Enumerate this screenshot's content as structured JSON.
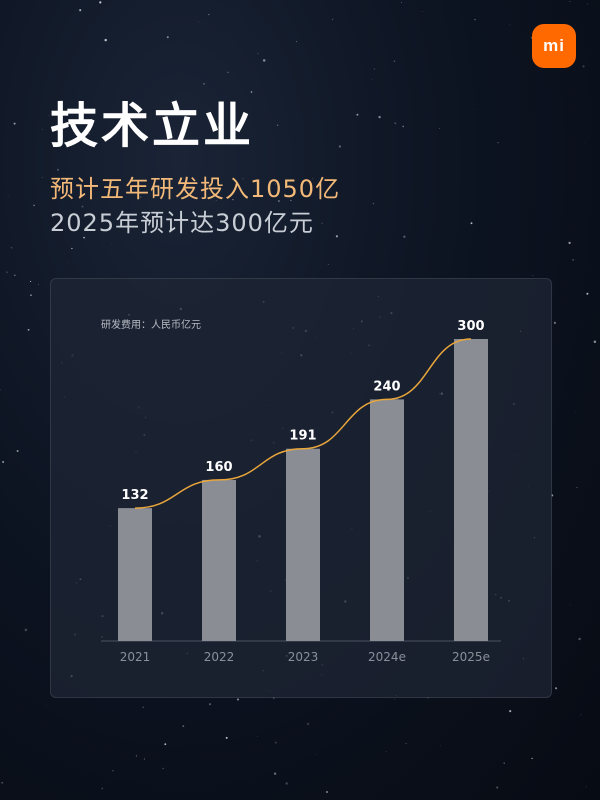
{
  "logo": {
    "text": "mi"
  },
  "header": {
    "title": "技术立业",
    "subtitle_highlight": "预计五年研发投入1050亿",
    "subtitle": "2025年预计达300亿元"
  },
  "colors": {
    "accent": "#f3b978",
    "bar": "#8a8e94",
    "line": "#e9a63c",
    "logo": "#ff6900"
  },
  "chart_data": {
    "type": "bar",
    "note": "研发费用：人民币亿元",
    "categories": [
      "2021",
      "2022",
      "2023",
      "2024e",
      "2025e"
    ],
    "values": [
      132,
      160,
      191,
      240,
      300
    ],
    "ylim": [
      0,
      300
    ],
    "trend_line": true,
    "grid": false,
    "legend": "none"
  }
}
